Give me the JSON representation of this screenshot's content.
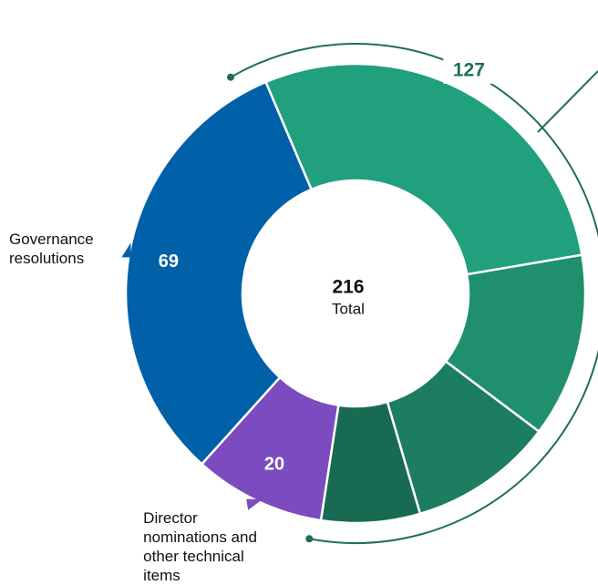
{
  "chart_data": {
    "type": "donut",
    "categories": [
      null,
      null,
      null,
      null,
      "Director nominations and other technical items",
      "Governance resolutions"
    ],
    "values": [
      62,
      28,
      22,
      15,
      20,
      69
    ],
    "colors": [
      "#21a07e",
      "#1f8f6e",
      "#1c7d60",
      "#196a52",
      "#7b4bbf",
      "#0060a8"
    ],
    "group": {
      "value": 127,
      "color": "#1f6e55"
    },
    "total": 216,
    "total_label": "Total"
  }
}
